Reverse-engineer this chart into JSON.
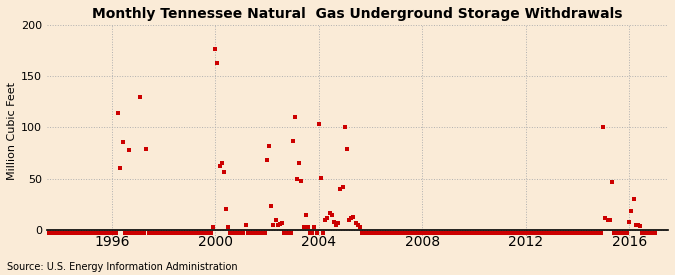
{
  "title": "Monthly Tennessee Natural  Gas Underground Storage Withdrawals",
  "ylabel": "Million Cubic Feet",
  "source": "Source: U.S. Energy Information Administration",
  "background_color": "#faebd7",
  "plot_bg_color": "#faebd7",
  "marker_color": "#cc0000",
  "xlim_left": 1993.5,
  "xlim_right": 2017.5,
  "ylim_bottom": -8,
  "ylim_top": 200,
  "yticks": [
    0,
    50,
    100,
    150,
    200
  ],
  "xticks": [
    1996,
    2000,
    2004,
    2008,
    2012,
    2016
  ],
  "xtick_labels": [
    "1996",
    "2000",
    "2004",
    "2008",
    "2012",
    "2016"
  ],
  "data_points": [
    [
      1993.08,
      -3
    ],
    [
      1993.17,
      -3
    ],
    [
      1993.25,
      -3
    ],
    [
      1993.33,
      -3
    ],
    [
      1993.42,
      -3
    ],
    [
      1993.5,
      -3
    ],
    [
      1993.58,
      -3
    ],
    [
      1993.67,
      -3
    ],
    [
      1993.75,
      -3
    ],
    [
      1993.83,
      -3
    ],
    [
      1993.92,
      -3
    ],
    [
      1994.0,
      -3
    ],
    [
      1994.08,
      -3
    ],
    [
      1994.17,
      -3
    ],
    [
      1994.25,
      -3
    ],
    [
      1994.33,
      -3
    ],
    [
      1994.42,
      -3
    ],
    [
      1994.5,
      -3
    ],
    [
      1994.58,
      -3
    ],
    [
      1994.67,
      -3
    ],
    [
      1994.75,
      -3
    ],
    [
      1994.83,
      -3
    ],
    [
      1994.92,
      -3
    ],
    [
      1995.0,
      -3
    ],
    [
      1995.08,
      -3
    ],
    [
      1995.17,
      -3
    ],
    [
      1995.25,
      -3
    ],
    [
      1995.33,
      -3
    ],
    [
      1995.42,
      -3
    ],
    [
      1995.5,
      -3
    ],
    [
      1995.58,
      -3
    ],
    [
      1995.67,
      -3
    ],
    [
      1995.75,
      -3
    ],
    [
      1995.83,
      -3
    ],
    [
      1995.92,
      -3
    ],
    [
      1996.08,
      -3
    ],
    [
      1996.17,
      -3
    ],
    [
      1996.25,
      114
    ],
    [
      1996.33,
      60
    ],
    [
      1996.42,
      86
    ],
    [
      1996.5,
      -3
    ],
    [
      1996.58,
      -3
    ],
    [
      1996.67,
      78
    ],
    [
      1996.75,
      -3
    ],
    [
      1996.83,
      -3
    ],
    [
      1996.92,
      -3
    ],
    [
      1997.08,
      130
    ],
    [
      1997.0,
      -3
    ],
    [
      1997.17,
      -3
    ],
    [
      1997.25,
      -3
    ],
    [
      1997.33,
      79
    ],
    [
      1997.42,
      -3
    ],
    [
      1997.5,
      -3
    ],
    [
      1997.58,
      -3
    ],
    [
      1997.67,
      -3
    ],
    [
      1997.75,
      -3
    ],
    [
      1997.83,
      -3
    ],
    [
      1997.92,
      -3
    ],
    [
      1998.0,
      -3
    ],
    [
      1998.08,
      -3
    ],
    [
      1998.17,
      -3
    ],
    [
      1998.25,
      -3
    ],
    [
      1998.33,
      -3
    ],
    [
      1998.42,
      -3
    ],
    [
      1998.5,
      -3
    ],
    [
      1998.58,
      -3
    ],
    [
      1998.67,
      -3
    ],
    [
      1998.75,
      -3
    ],
    [
      1998.83,
      -3
    ],
    [
      1998.92,
      -3
    ],
    [
      1999.0,
      -3
    ],
    [
      1999.08,
      -3
    ],
    [
      1999.17,
      -3
    ],
    [
      1999.25,
      -3
    ],
    [
      1999.33,
      -3
    ],
    [
      1999.42,
      -3
    ],
    [
      1999.5,
      -3
    ],
    [
      1999.58,
      -3
    ],
    [
      1999.67,
      -3
    ],
    [
      1999.75,
      -3
    ],
    [
      1999.83,
      -3
    ],
    [
      1999.92,
      3
    ],
    [
      2000.0,
      176
    ],
    [
      2000.08,
      163
    ],
    [
      2000.17,
      62
    ],
    [
      2000.25,
      65
    ],
    [
      2000.33,
      56
    ],
    [
      2000.42,
      20
    ],
    [
      2000.5,
      3
    ],
    [
      2000.58,
      -3
    ],
    [
      2000.67,
      -3
    ],
    [
      2000.75,
      -3
    ],
    [
      2000.83,
      -3
    ],
    [
      2000.92,
      -3
    ],
    [
      2001.0,
      -3
    ],
    [
      2001.08,
      -3
    ],
    [
      2001.17,
      5
    ],
    [
      2001.25,
      -3
    ],
    [
      2001.33,
      -3
    ],
    [
      2001.42,
      -3
    ],
    [
      2001.5,
      -3
    ],
    [
      2001.58,
      -3
    ],
    [
      2001.67,
      -3
    ],
    [
      2001.75,
      -3
    ],
    [
      2001.83,
      -3
    ],
    [
      2001.92,
      -3
    ],
    [
      2002.0,
      68
    ],
    [
      2002.08,
      82
    ],
    [
      2002.17,
      23
    ],
    [
      2002.25,
      5
    ],
    [
      2002.33,
      10
    ],
    [
      2002.42,
      5
    ],
    [
      2002.5,
      6
    ],
    [
      2002.58,
      7
    ],
    [
      2002.67,
      -3
    ],
    [
      2002.75,
      -3
    ],
    [
      2002.83,
      -3
    ],
    [
      2002.92,
      -3
    ],
    [
      2003.0,
      87
    ],
    [
      2003.08,
      110
    ],
    [
      2003.17,
      50
    ],
    [
      2003.25,
      65
    ],
    [
      2003.33,
      48
    ],
    [
      2003.42,
      3
    ],
    [
      2003.5,
      15
    ],
    [
      2003.58,
      3
    ],
    [
      2003.67,
      -3
    ],
    [
      2003.75,
      -3
    ],
    [
      2003.83,
      3
    ],
    [
      2003.92,
      -3
    ],
    [
      2004.0,
      103
    ],
    [
      2004.08,
      51
    ],
    [
      2004.17,
      -3
    ],
    [
      2004.25,
      10
    ],
    [
      2004.33,
      12
    ],
    [
      2004.42,
      16
    ],
    [
      2004.5,
      15
    ],
    [
      2004.58,
      8
    ],
    [
      2004.67,
      5
    ],
    [
      2004.75,
      7
    ],
    [
      2004.83,
      40
    ],
    [
      2004.92,
      42
    ],
    [
      2005.0,
      100
    ],
    [
      2005.08,
      79
    ],
    [
      2005.17,
      10
    ],
    [
      2005.25,
      12
    ],
    [
      2005.33,
      13
    ],
    [
      2005.42,
      7
    ],
    [
      2005.5,
      5
    ],
    [
      2005.58,
      3
    ],
    [
      2005.67,
      -3
    ],
    [
      2005.75,
      -3
    ],
    [
      2005.83,
      -3
    ],
    [
      2005.92,
      -3
    ],
    [
      2006.0,
      -3
    ],
    [
      2006.08,
      -3
    ],
    [
      2006.17,
      -3
    ],
    [
      2006.25,
      -3
    ],
    [
      2006.33,
      -3
    ],
    [
      2006.42,
      -3
    ],
    [
      2006.5,
      -3
    ],
    [
      2006.58,
      -3
    ],
    [
      2006.67,
      -3
    ],
    [
      2006.75,
      -3
    ],
    [
      2006.83,
      -3
    ],
    [
      2006.92,
      -3
    ],
    [
      2007.0,
      -3
    ],
    [
      2007.08,
      -3
    ],
    [
      2007.17,
      -3
    ],
    [
      2007.25,
      -3
    ],
    [
      2007.33,
      -3
    ],
    [
      2007.42,
      -3
    ],
    [
      2007.5,
      -3
    ],
    [
      2007.58,
      -3
    ],
    [
      2007.67,
      -3
    ],
    [
      2007.75,
      -3
    ],
    [
      2007.83,
      -3
    ],
    [
      2007.92,
      -3
    ],
    [
      2008.0,
      -3
    ],
    [
      2008.08,
      -3
    ],
    [
      2008.17,
      -3
    ],
    [
      2008.25,
      -3
    ],
    [
      2008.33,
      -3
    ],
    [
      2008.42,
      -3
    ],
    [
      2008.5,
      -3
    ],
    [
      2008.58,
      -3
    ],
    [
      2008.67,
      -3
    ],
    [
      2008.75,
      -3
    ],
    [
      2008.83,
      -3
    ],
    [
      2008.92,
      -3
    ],
    [
      2009.0,
      -3
    ],
    [
      2009.08,
      -3
    ],
    [
      2009.17,
      -3
    ],
    [
      2009.25,
      -3
    ],
    [
      2009.33,
      -3
    ],
    [
      2009.42,
      -3
    ],
    [
      2009.5,
      -3
    ],
    [
      2009.58,
      -3
    ],
    [
      2009.67,
      -3
    ],
    [
      2009.75,
      -3
    ],
    [
      2009.83,
      -3
    ],
    [
      2009.92,
      -3
    ],
    [
      2010.0,
      -3
    ],
    [
      2010.08,
      -3
    ],
    [
      2010.17,
      -3
    ],
    [
      2010.25,
      -3
    ],
    [
      2010.33,
      -3
    ],
    [
      2010.42,
      -3
    ],
    [
      2010.5,
      -3
    ],
    [
      2010.58,
      -3
    ],
    [
      2010.67,
      -3
    ],
    [
      2010.75,
      -3
    ],
    [
      2010.83,
      -3
    ],
    [
      2010.92,
      -3
    ],
    [
      2011.0,
      -3
    ],
    [
      2011.08,
      -3
    ],
    [
      2011.17,
      -3
    ],
    [
      2011.25,
      -3
    ],
    [
      2011.33,
      -3
    ],
    [
      2011.42,
      -3
    ],
    [
      2011.5,
      -3
    ],
    [
      2011.58,
      -3
    ],
    [
      2011.67,
      -3
    ],
    [
      2011.75,
      -3
    ],
    [
      2011.83,
      -3
    ],
    [
      2011.92,
      -3
    ],
    [
      2012.0,
      -3
    ],
    [
      2012.08,
      -3
    ],
    [
      2012.17,
      -3
    ],
    [
      2012.25,
      -3
    ],
    [
      2012.33,
      -3
    ],
    [
      2012.42,
      -3
    ],
    [
      2012.5,
      -3
    ],
    [
      2012.58,
      -3
    ],
    [
      2012.67,
      -3
    ],
    [
      2012.75,
      -3
    ],
    [
      2012.83,
      -3
    ],
    [
      2012.92,
      -3
    ],
    [
      2013.0,
      -3
    ],
    [
      2013.08,
      -3
    ],
    [
      2013.17,
      -3
    ],
    [
      2013.25,
      -3
    ],
    [
      2013.33,
      -3
    ],
    [
      2013.42,
      -3
    ],
    [
      2013.5,
      -3
    ],
    [
      2013.58,
      -3
    ],
    [
      2013.67,
      -3
    ],
    [
      2013.75,
      -3
    ],
    [
      2013.83,
      -3
    ],
    [
      2013.92,
      -3
    ],
    [
      2014.0,
      -3
    ],
    [
      2014.08,
      -3
    ],
    [
      2014.17,
      -3
    ],
    [
      2014.25,
      -3
    ],
    [
      2014.33,
      -3
    ],
    [
      2014.42,
      -3
    ],
    [
      2014.5,
      -3
    ],
    [
      2014.58,
      -3
    ],
    [
      2014.67,
      -3
    ],
    [
      2014.75,
      -3
    ],
    [
      2014.83,
      -3
    ],
    [
      2014.92,
      -3
    ],
    [
      2015.0,
      100
    ],
    [
      2015.08,
      12
    ],
    [
      2015.17,
      10
    ],
    [
      2015.25,
      10
    ],
    [
      2015.33,
      47
    ],
    [
      2015.42,
      -3
    ],
    [
      2015.5,
      -3
    ],
    [
      2015.58,
      -3
    ],
    [
      2015.67,
      -3
    ],
    [
      2015.75,
      -3
    ],
    [
      2015.83,
      -3
    ],
    [
      2015.92,
      -3
    ],
    [
      2016.0,
      8
    ],
    [
      2016.08,
      18
    ],
    [
      2016.17,
      30
    ],
    [
      2016.25,
      5
    ],
    [
      2016.33,
      5
    ],
    [
      2016.42,
      4
    ],
    [
      2016.5,
      -3
    ],
    [
      2016.58,
      -3
    ],
    [
      2016.67,
      -3
    ],
    [
      2016.75,
      -3
    ],
    [
      2016.83,
      -3
    ],
    [
      2016.92,
      -3
    ],
    [
      2017.0,
      -3
    ]
  ]
}
